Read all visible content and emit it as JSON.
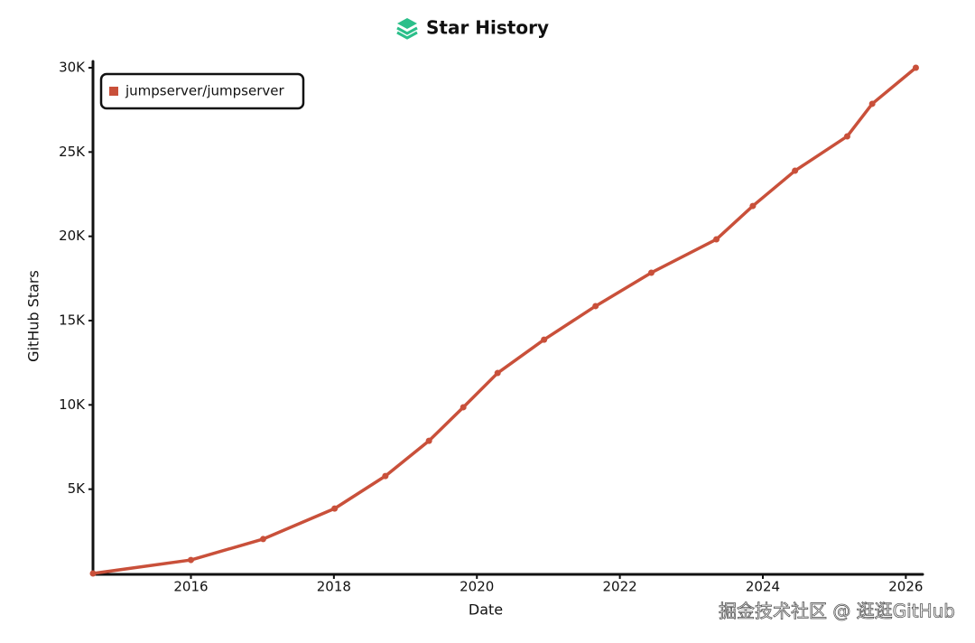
{
  "chart_data": {
    "type": "line",
    "title": "Star History",
    "x_label": "Date",
    "y_label": "GitHub Stars",
    "watermark": "掘金技术社区 @ 逛逛GitHub",
    "legend": "top-left",
    "xlim": [
      2014.63,
      2026.21
    ],
    "xticks": [
      2016,
      2018,
      2020,
      2022,
      2024,
      2026
    ],
    "ylim": [
      0,
      30000
    ],
    "yticks": [
      {
        "value": 5000,
        "label": "5K"
      },
      {
        "value": 10000,
        "label": "10K"
      },
      {
        "value": 15000,
        "label": "15K"
      },
      {
        "value": 20000,
        "label": "20K"
      },
      {
        "value": 25000,
        "label": "25K"
      },
      {
        "value": 30000,
        "label": "30K"
      }
    ],
    "series": [
      {
        "name": "jumpserver/jumpserver",
        "color": "#c9503a",
        "x": [
          2014.63,
          2016.0,
          2017.01,
          2018.01,
          2018.72,
          2019.33,
          2019.81,
          2020.29,
          2020.94,
          2021.66,
          2022.44,
          2023.35,
          2023.86,
          2024.45,
          2025.18,
          2025.53,
          2026.14
        ],
        "values": [
          0,
          800,
          2040,
          3850,
          5780,
          7870,
          9860,
          11890,
          13870,
          15860,
          17840,
          19820,
          21800,
          23890,
          25930,
          27860,
          30000
        ]
      }
    ]
  }
}
